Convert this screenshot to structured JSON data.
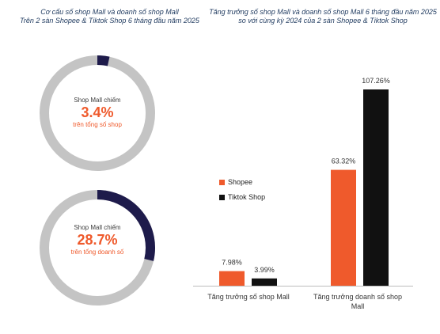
{
  "titles": {
    "left_line1": "Cơ cấu số shop Mall và doanh số shop Mall",
    "left_line2": "Trên 2 sàn Shopee & Tiktok Shop 6 tháng đầu năm 2025",
    "right_line1": "Tăng trưởng số shop Mall và doanh số shop Mall 6 tháng đầu năm 2025",
    "right_line2": "so với cùng kỳ 2024 của 2 sàn Shopee & Tiktok Shop"
  },
  "donuts": [
    {
      "label": "Shop Mall chiếm",
      "percent_text": "3.4%",
      "sub": "trên tổng số shop",
      "value": 3.4
    },
    {
      "label": "Shop Mall chiếm",
      "percent_text": "28.7%",
      "sub": "trên tổng doanh số",
      "value": 28.7
    }
  ],
  "colors": {
    "shopee": "#ef5a2c",
    "tiktok": "#111111",
    "donut_fill": "#1e1b4b",
    "donut_bg": "#c4c4c4"
  },
  "chart_data": [
    {
      "type": "pie",
      "title": "Cơ cấu số shop Mall và doanh số shop Mall Trên 2 sàn Shopee & Tiktok Shop 6 tháng đầu năm 2025",
      "slices": [
        {
          "name": "Shop Mall chiếm trên tổng số shop",
          "value": 3.4
        },
        {
          "name": "Shop Mall chiếm trên tổng doanh số",
          "value": 28.7
        }
      ]
    },
    {
      "type": "bar",
      "title": "Tăng trưởng số shop Mall và doanh số shop Mall 6 tháng đầu năm 2025 so với cùng kỳ 2024 của 2 sàn Shopee & Tiktok Shop",
      "categories": [
        "Tăng trưởng số shop Mall",
        "Tăng trưởng doanh số shop Mall"
      ],
      "series": [
        {
          "name": "Shopee",
          "values": [
            7.98,
            63.32
          ],
          "labels": [
            "7.98%",
            "63.32%"
          ]
        },
        {
          "name": "Tiktok Shop",
          "values": [
            3.99,
            107.26
          ],
          "labels": [
            "3.99%",
            "107.26%"
          ]
        }
      ],
      "ylim": [
        0,
        115
      ],
      "grid": false,
      "legend": "left"
    }
  ]
}
